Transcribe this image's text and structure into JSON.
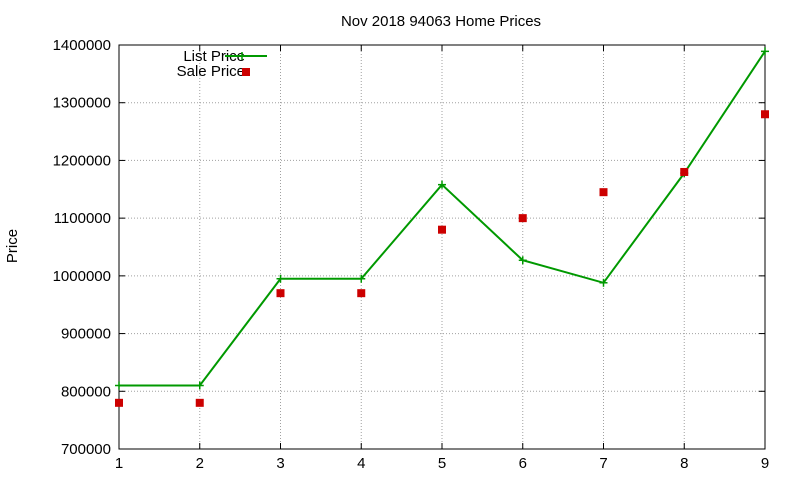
{
  "chart_data": {
    "type": "line",
    "title": "Nov 2018 94063 Home Prices",
    "xlabel": "",
    "ylabel": "Price",
    "x": [
      1,
      2,
      3,
      4,
      5,
      6,
      7,
      8,
      9
    ],
    "xlim": [
      1,
      9
    ],
    "ylim": [
      700000,
      1400000
    ],
    "x_ticks": [
      "1",
      "2",
      "3",
      "4",
      "5",
      "6",
      "7",
      "8",
      "9"
    ],
    "y_ticks": [
      "700000",
      "800000",
      "900000",
      "1000000",
      "1100000",
      "1200000",
      "1300000",
      "1400000"
    ],
    "grid": true,
    "legend_position": "top-left",
    "series": [
      {
        "name": "List Price",
        "style": "line+cross",
        "color": "#009900",
        "values": [
          810000,
          810000,
          995000,
          995000,
          1158000,
          1027000,
          988000,
          1178000,
          1389000
        ]
      },
      {
        "name": "Sale Price",
        "style": "square-markers",
        "color": "#cc0000",
        "values": [
          780000,
          780000,
          970000,
          970000,
          1080000,
          1100000,
          1145000,
          1180000,
          1280000
        ]
      }
    ]
  }
}
